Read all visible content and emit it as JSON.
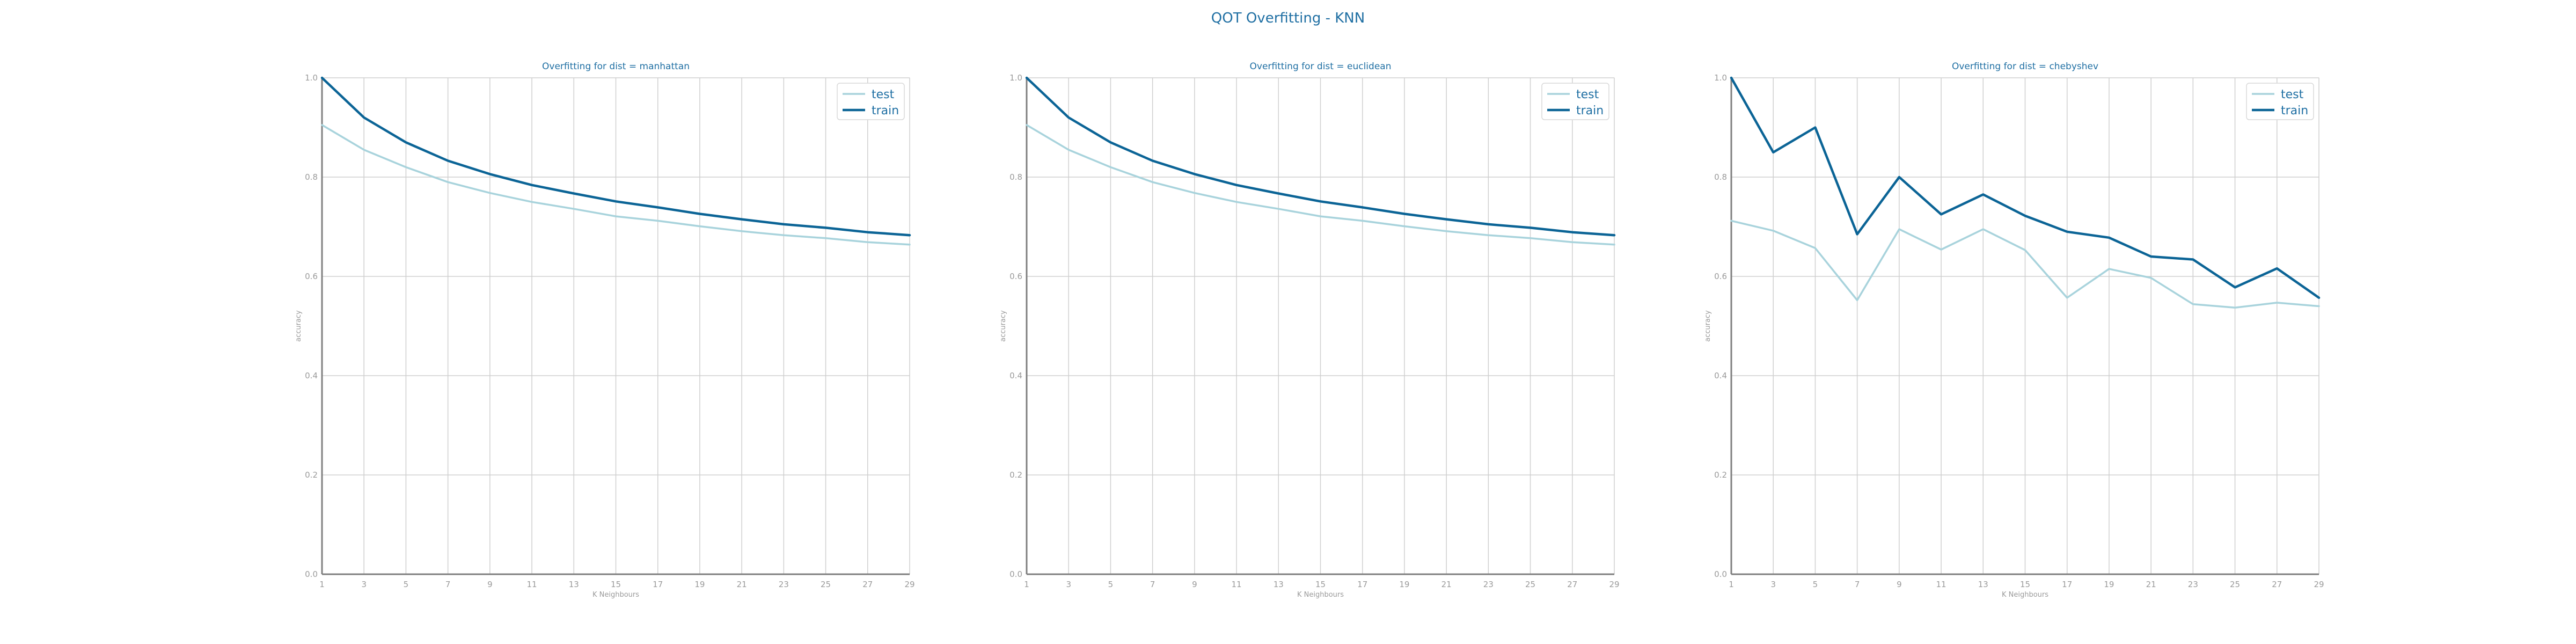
{
  "suptitle": "QOT Overfitting - KNN",
  "colors": {
    "test": "#a8d3dc",
    "train": "#0b6496",
    "grid": "#cfcfcf",
    "axis": "#7f7f7f",
    "text": "#1f6fa3",
    "tick": "#9a9a9a"
  },
  "chart_data": [
    {
      "type": "line",
      "title": "Overfitting for dist = manhattan",
      "xlabel": "K Neighbours",
      "ylabel": "accuracy",
      "x": [
        1,
        3,
        5,
        7,
        9,
        11,
        13,
        15,
        17,
        19,
        21,
        23,
        25,
        27,
        29
      ],
      "xticks": [
        1,
        3,
        5,
        7,
        9,
        11,
        13,
        15,
        17,
        19,
        21,
        23,
        25,
        27,
        29
      ],
      "yticks": [
        0.0,
        0.2,
        0.4,
        0.6,
        0.8,
        1.0
      ],
      "ytick_labels": [
        "0.0",
        "0.2",
        "0.4",
        "0.6",
        "0.8",
        "1.0"
      ],
      "xlim": [
        1,
        29
      ],
      "ylim": [
        0,
        1
      ],
      "grid": true,
      "legend": "top-right",
      "series": [
        {
          "name": "test",
          "values": [
            0.905,
            0.855,
            0.82,
            0.79,
            0.768,
            0.75,
            0.736,
            0.721,
            0.712,
            0.701,
            0.691,
            0.683,
            0.677,
            0.669,
            0.664
          ]
        },
        {
          "name": "train",
          "values": [
            1.0,
            0.92,
            0.87,
            0.833,
            0.806,
            0.784,
            0.767,
            0.751,
            0.739,
            0.726,
            0.715,
            0.705,
            0.698,
            0.689,
            0.683
          ]
        }
      ]
    },
    {
      "type": "line",
      "title": "Overfitting for dist = euclidean",
      "xlabel": "K Neighbours",
      "ylabel": "accuracy",
      "x": [
        1,
        3,
        5,
        7,
        9,
        11,
        13,
        15,
        17,
        19,
        21,
        23,
        25,
        27,
        29
      ],
      "xticks": [
        1,
        3,
        5,
        7,
        9,
        11,
        13,
        15,
        17,
        19,
        21,
        23,
        25,
        27,
        29
      ],
      "yticks": [
        0.0,
        0.2,
        0.4,
        0.6,
        0.8,
        1.0
      ],
      "ytick_labels": [
        "0.0",
        "0.2",
        "0.4",
        "0.6",
        "0.8",
        "1.0"
      ],
      "xlim": [
        1,
        29
      ],
      "ylim": [
        0,
        1
      ],
      "grid": true,
      "legend": "top-right",
      "series": [
        {
          "name": "test",
          "values": [
            0.905,
            0.855,
            0.82,
            0.79,
            0.768,
            0.75,
            0.736,
            0.721,
            0.712,
            0.701,
            0.691,
            0.683,
            0.677,
            0.669,
            0.664
          ]
        },
        {
          "name": "train",
          "values": [
            1.0,
            0.92,
            0.87,
            0.833,
            0.806,
            0.784,
            0.767,
            0.751,
            0.739,
            0.726,
            0.715,
            0.705,
            0.698,
            0.689,
            0.683
          ]
        }
      ]
    },
    {
      "type": "line",
      "title": "Overfitting for dist = chebyshev",
      "xlabel": "K Neighbours",
      "ylabel": "accuracy",
      "x": [
        1,
        3,
        5,
        7,
        9,
        11,
        13,
        15,
        17,
        19,
        21,
        23,
        25,
        27,
        29
      ],
      "xticks": [
        1,
        3,
        5,
        7,
        9,
        11,
        13,
        15,
        17,
        19,
        21,
        23,
        25,
        27,
        29
      ],
      "yticks": [
        0.0,
        0.2,
        0.4,
        0.6,
        0.8,
        1.0
      ],
      "ytick_labels": [
        "0.0",
        "0.2",
        "0.4",
        "0.6",
        "0.8",
        "1.0"
      ],
      "xlim": [
        1,
        29
      ],
      "ylim": [
        0,
        1
      ],
      "grid": true,
      "legend": "top-right",
      "series": [
        {
          "name": "test",
          "values": [
            0.712,
            0.692,
            0.657,
            0.552,
            0.695,
            0.654,
            0.695,
            0.653,
            0.557,
            0.615,
            0.597,
            0.544,
            0.537,
            0.547,
            0.54
          ]
        },
        {
          "name": "train",
          "values": [
            1.0,
            0.85,
            0.9,
            0.685,
            0.8,
            0.725,
            0.765,
            0.722,
            0.69,
            0.678,
            0.64,
            0.634,
            0.578,
            0.616,
            0.557
          ]
        }
      ]
    }
  ]
}
